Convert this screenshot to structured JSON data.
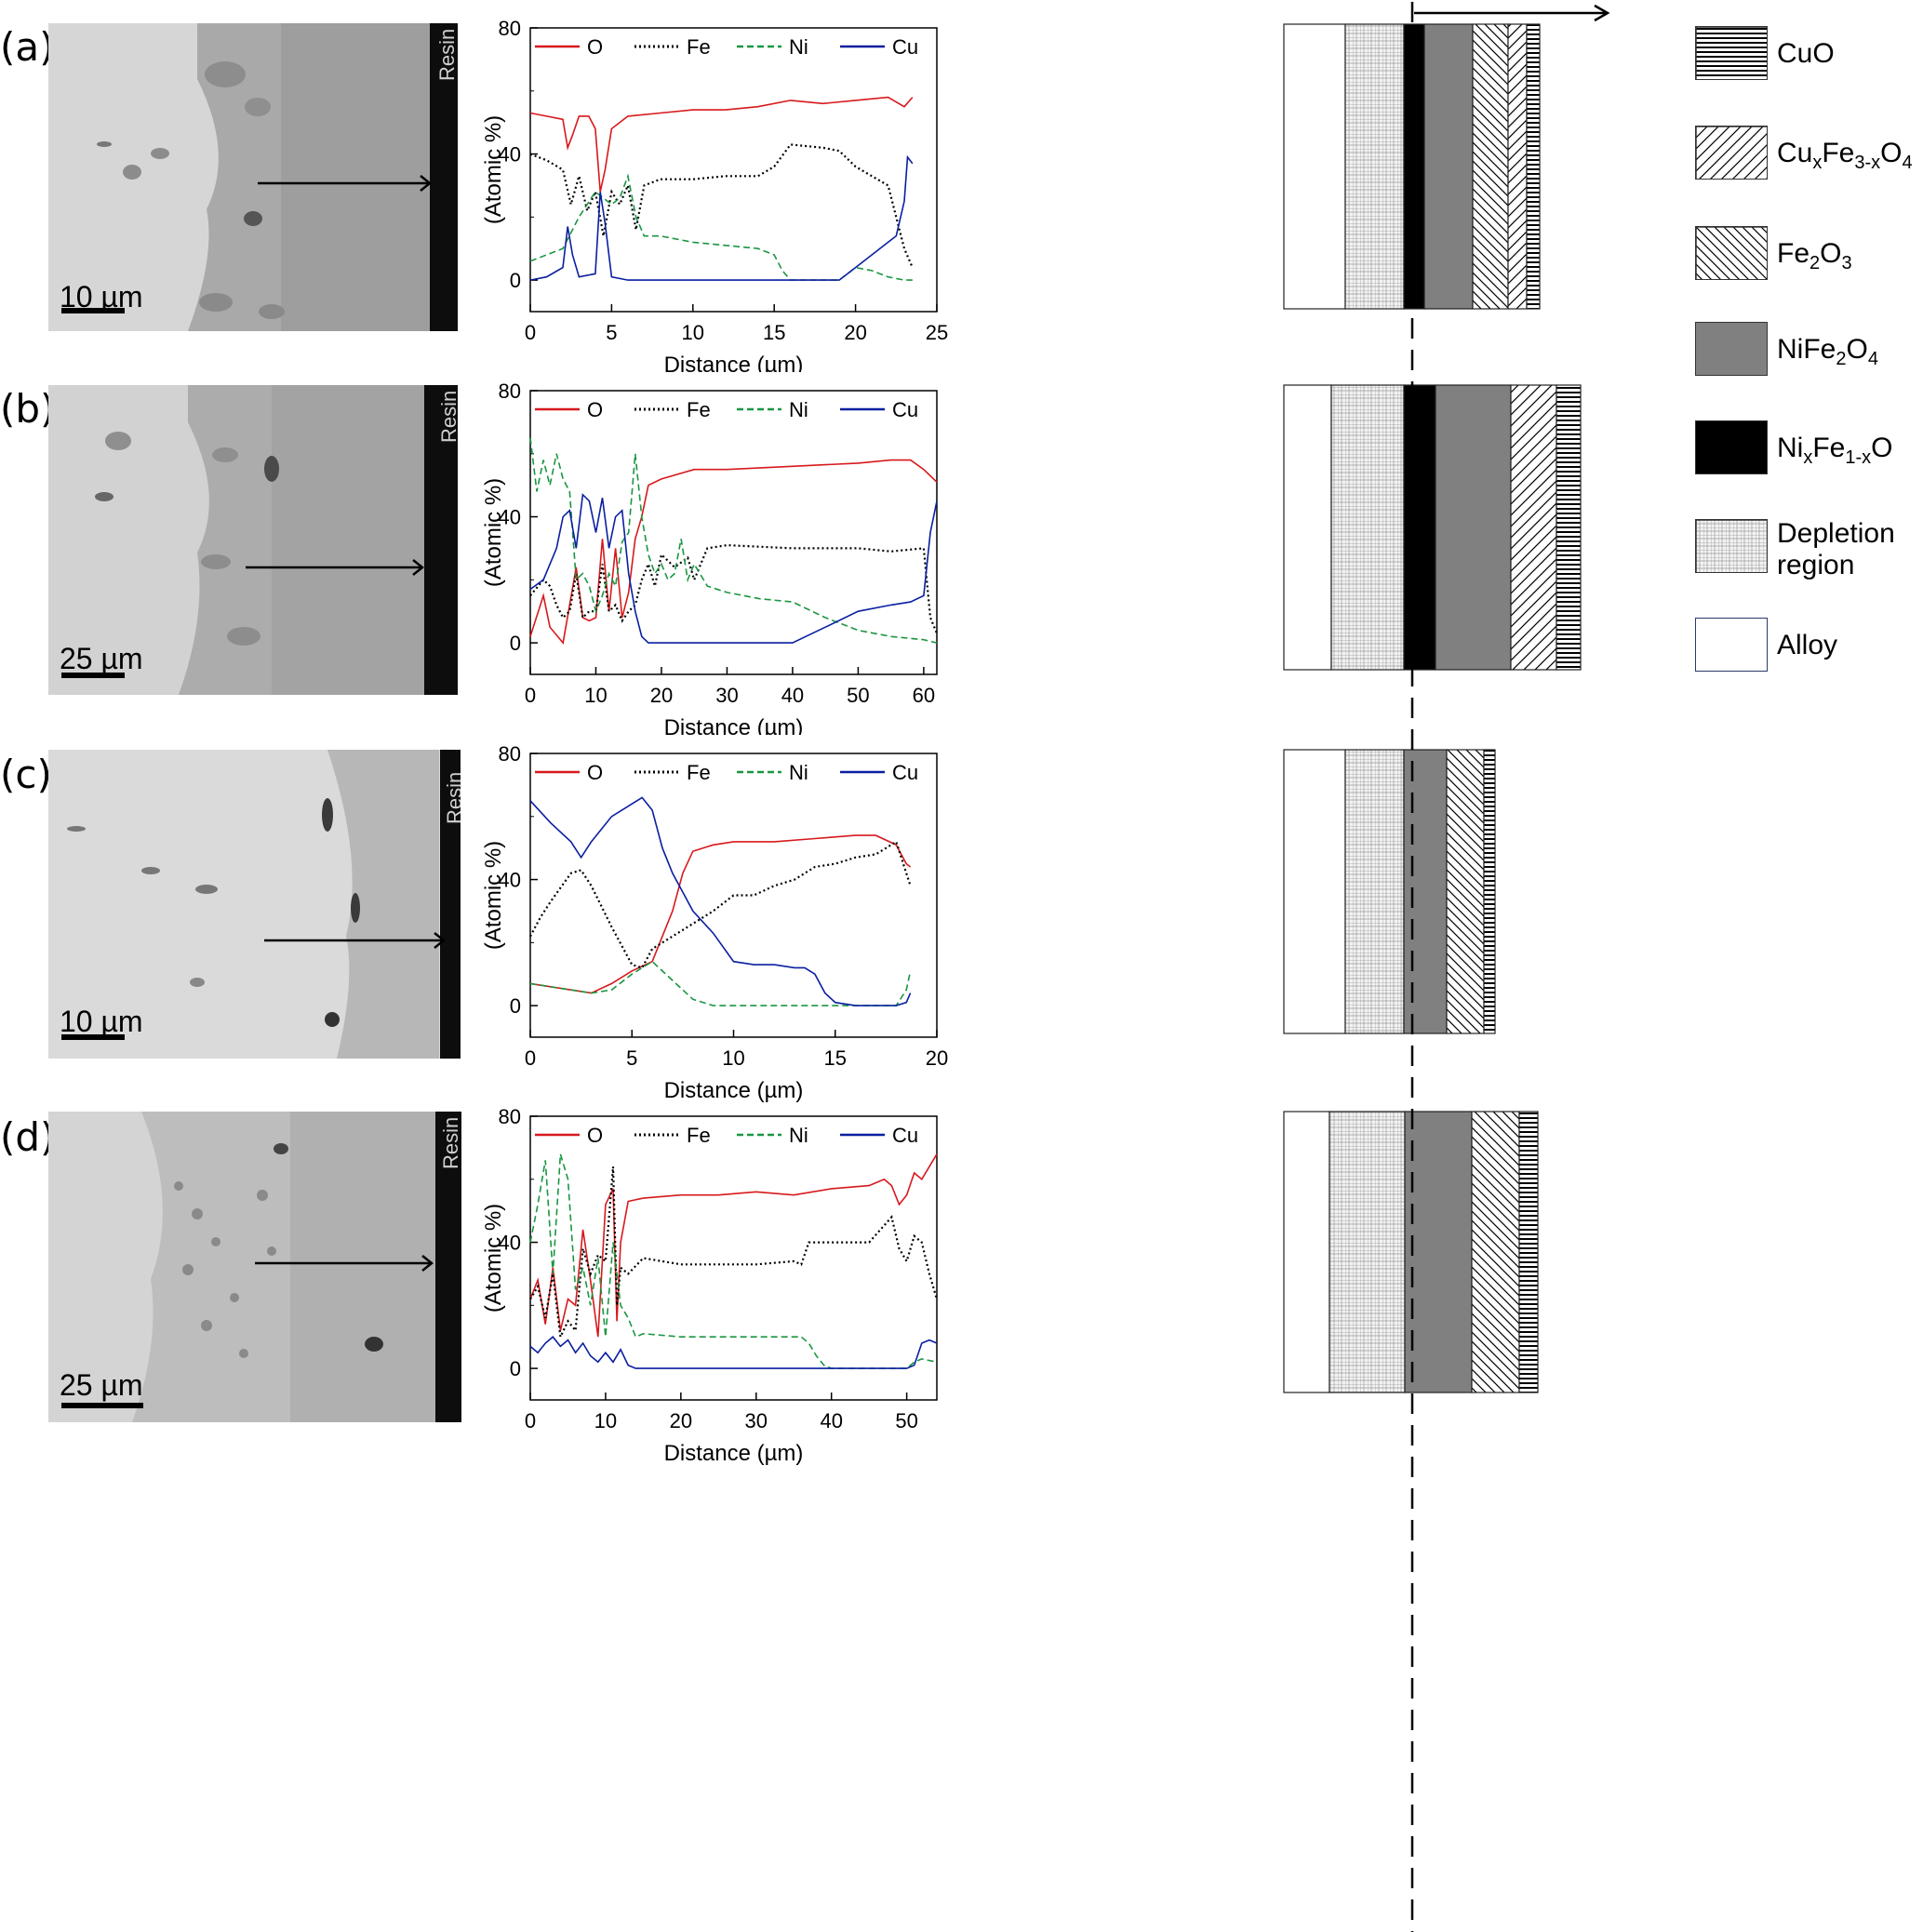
{
  "panels": [
    {
      "label": "(a)",
      "resin": "Resin",
      "scalebar": "10 µm",
      "legend": {
        "o": "O",
        "fe": "Fe",
        "ni": "Ni",
        "cu": "Cu"
      },
      "xlabel": "Distance (µm)",
      "ylabel": "(Atomic %)",
      "xticks": [
        "0",
        "5",
        "10",
        "15",
        "20",
        "25"
      ],
      "yticks": [
        "0",
        "40",
        "80"
      ]
    },
    {
      "label": "(b)",
      "resin": "Resin",
      "scalebar": "25 µm",
      "legend": {
        "o": "O",
        "fe": "Fe",
        "ni": "Ni",
        "cu": "Cu"
      },
      "xlabel": "Distance (µm)",
      "ylabel": "(Atomic %)",
      "xticks": [
        "0",
        "10",
        "20",
        "30",
        "40",
        "50",
        "60"
      ],
      "yticks": [
        "0",
        "40",
        "80"
      ]
    },
    {
      "label": "(c)",
      "resin": "Resin",
      "scalebar": "10 µm",
      "legend": {
        "o": "O",
        "fe": "Fe",
        "ni": "Ni",
        "cu": "Cu"
      },
      "xlabel": "Distance (µm)",
      "ylabel": "(Atomic %)",
      "xticks": [
        "0",
        "5",
        "10",
        "15",
        "20"
      ],
      "yticks": [
        "0",
        "40",
        "80"
      ]
    },
    {
      "label": "(d)",
      "resin": "Resin",
      "scalebar": "25 µm",
      "legend": {
        "o": "O",
        "fe": "Fe",
        "ni": "Ni",
        "cu": "Cu"
      },
      "xlabel": "Distance (µm)",
      "ylabel": "(Atomic %)",
      "xticks": [
        "0",
        "10",
        "20",
        "30",
        "40",
        "50"
      ],
      "yticks": [
        "0",
        "40",
        "80"
      ]
    }
  ],
  "legend": {
    "cuo": "CuO",
    "cufe_base": "Cu",
    "cufe_sub1": "x",
    "cufe_mid": "Fe",
    "cufe_sub2": "3-x",
    "cufe_end": "O",
    "cufe_sub3": "4",
    "fe2o3_a": "Fe",
    "fe2o3_s1": "2",
    "fe2o3_b": "O",
    "fe2o3_s2": "3",
    "nife_a": "NiFe",
    "nife_s1": "2",
    "nife_b": "O",
    "nife_s2": "4",
    "nio_a": "Ni",
    "nio_s1": "x",
    "nio_b": "Fe",
    "nio_s2": "1-x",
    "nio_c": "O",
    "depl1": "Depletion",
    "depl2": "region",
    "alloy": "Alloy"
  },
  "colors": {
    "o": "#d7191c",
    "fe": "#000000",
    "ni": "#1a9641",
    "cu": "#0a1fa0"
  },
  "chart_data": [
    {
      "type": "line",
      "panel": "(a)",
      "xlim": [
        0,
        25
      ],
      "ylim": [
        -10,
        80
      ],
      "series": [
        {
          "name": "O",
          "x": [
            0,
            1,
            2,
            2.3,
            2.6,
            3,
            3.6,
            4,
            4.3,
            4.6,
            5,
            6,
            8,
            10,
            12,
            14,
            16,
            18,
            20,
            22,
            23,
            23.5
          ],
          "y": [
            53,
            52,
            51,
            42,
            46,
            52,
            52,
            48,
            28,
            35,
            48,
            52,
            53,
            54,
            54,
            55,
            57,
            56,
            57,
            58,
            55,
            58
          ]
        },
        {
          "name": "Fe",
          "x": [
            0,
            1,
            2,
            2.5,
            3,
            3.5,
            4,
            4.5,
            5,
            5.5,
            6,
            6.5,
            7,
            8,
            10,
            12,
            14,
            15,
            16,
            18,
            19,
            20,
            21,
            22,
            23,
            23.5
          ],
          "y": [
            40,
            38,
            35,
            24,
            33,
            22,
            28,
            14,
            28,
            24,
            30,
            16,
            30,
            32,
            32,
            33,
            33,
            36,
            43,
            42,
            41,
            36,
            33,
            30,
            10,
            4
          ]
        },
        {
          "name": "Ni",
          "x": [
            0,
            1,
            2,
            3,
            4,
            5,
            5.5,
            6,
            6.5,
            7,
            8,
            10,
            12,
            14,
            15,
            15.5,
            16,
            17,
            19,
            20,
            21,
            22,
            23,
            23.5
          ],
          "y": [
            6,
            8,
            10,
            20,
            28,
            24,
            26,
            33,
            20,
            14,
            14,
            12,
            11,
            10,
            8,
            3,
            0,
            0,
            0,
            4,
            3,
            1,
            0,
            0
          ]
        },
        {
          "name": "Cu",
          "x": [
            0,
            1,
            2,
            2.3,
            2.6,
            3,
            4,
            4.3,
            4.6,
            5,
            6,
            8,
            10,
            12,
            14,
            16,
            18,
            19,
            20,
            21,
            22,
            22.5,
            23,
            23.2,
            23.5
          ],
          "y": [
            0,
            1,
            4,
            17,
            8,
            1,
            2,
            28,
            18,
            1,
            0,
            0,
            0,
            0,
            0,
            0,
            0,
            0,
            4,
            8,
            12,
            14,
            25,
            39,
            37
          ]
        }
      ]
    },
    {
      "type": "line",
      "panel": "(b)",
      "xlim": [
        0,
        62
      ],
      "ylim": [
        -10,
        80
      ],
      "series": [
        {
          "name": "O",
          "x": [
            0,
            2,
            3,
            5,
            6,
            7,
            8,
            9,
            10,
            11,
            12,
            13,
            14,
            15,
            16,
            17,
            18,
            20,
            25,
            30,
            40,
            50,
            55,
            58,
            60,
            62
          ],
          "y": [
            2,
            15,
            5,
            0,
            12,
            24,
            8,
            7,
            8,
            33,
            10,
            30,
            8,
            16,
            33,
            40,
            50,
            52,
            55,
            55,
            56,
            57,
            58,
            58,
            55,
            51
          ]
        },
        {
          "name": "Fe",
          "x": [
            0,
            2,
            3,
            4,
            5,
            6,
            7,
            8,
            9,
            10,
            11,
            12,
            13,
            14,
            15,
            16,
            17,
            18,
            19,
            20,
            22,
            24,
            25,
            27,
            30,
            40,
            50,
            55,
            60,
            61,
            62
          ],
          "y": [
            15,
            20,
            18,
            12,
            8,
            10,
            22,
            8,
            10,
            10,
            25,
            10,
            12,
            7,
            10,
            12,
            20,
            25,
            18,
            28,
            24,
            27,
            20,
            30,
            31,
            30,
            30,
            29,
            30,
            8,
            3
          ]
        },
        {
          "name": "Ni",
          "x": [
            0,
            1,
            2,
            3,
            4,
            5,
            6,
            7,
            8,
            9,
            10,
            11,
            12,
            13,
            14,
            15,
            16,
            17,
            18,
            19,
            20,
            21,
            22,
            23,
            24,
            25,
            27,
            30,
            35,
            40,
            45,
            50,
            55,
            60,
            62
          ],
          "y": [
            65,
            48,
            58,
            50,
            60,
            52,
            48,
            20,
            22,
            18,
            10,
            15,
            22,
            18,
            32,
            35,
            60,
            40,
            28,
            22,
            25,
            20,
            22,
            33,
            20,
            25,
            18,
            16,
            14,
            13,
            8,
            4,
            2,
            1,
            0
          ]
        },
        {
          "name": "Cu",
          "x": [
            0,
            2,
            4,
            5,
            6,
            7,
            8,
            9,
            10,
            11,
            12,
            13,
            14,
            15,
            16,
            17,
            18,
            20,
            25,
            30,
            35,
            40,
            45,
            50,
            55,
            58,
            60,
            61,
            62
          ],
          "y": [
            17,
            20,
            30,
            40,
            42,
            30,
            47,
            45,
            35,
            46,
            30,
            40,
            42,
            22,
            10,
            2,
            0,
            0,
            0,
            0,
            0,
            0,
            5,
            10,
            12,
            13,
            15,
            35,
            45
          ]
        }
      ]
    },
    {
      "type": "line",
      "panel": "(c)",
      "xlim": [
        0,
        20
      ],
      "ylim": [
        -10,
        80
      ],
      "series": [
        {
          "name": "O",
          "x": [
            0,
            1,
            2,
            3,
            4,
            5,
            6,
            6.5,
            7,
            7.5,
            8,
            9,
            10,
            12,
            14,
            16,
            17,
            18,
            18.5,
            18.7
          ],
          "y": [
            7,
            6,
            5,
            4,
            7,
            11,
            14,
            22,
            30,
            42,
            49,
            51,
            52,
            52,
            53,
            54,
            54,
            51,
            45,
            44
          ]
        },
        {
          "name": "Fe",
          "x": [
            0,
            0.5,
            1,
            2,
            2.5,
            3,
            4,
            5,
            5.5,
            6,
            7,
            8,
            9,
            10,
            11,
            12,
            13,
            14,
            15,
            16,
            17,
            17.5,
            18,
            18.5,
            18.7
          ],
          "y": [
            22,
            28,
            33,
            42,
            43,
            38,
            25,
            13,
            12,
            18,
            22,
            26,
            30,
            35,
            35,
            38,
            40,
            44,
            45,
            47,
            48,
            50,
            52,
            42,
            38
          ]
        },
        {
          "name": "Ni",
          "x": [
            0,
            1,
            2,
            3,
            4,
            5,
            6,
            7,
            8,
            9,
            10,
            12,
            14,
            16,
            17,
            18,
            18.5,
            18.7
          ],
          "y": [
            7,
            6,
            5,
            4,
            5,
            10,
            14,
            8,
            2,
            0,
            0,
            0,
            0,
            0,
            0,
            0,
            5,
            11
          ]
        },
        {
          "name": "Cu",
          "x": [
            0,
            1,
            2,
            2.5,
            3,
            4,
            5,
            5.5,
            6,
            6.5,
            7,
            7.5,
            8,
            9,
            10,
            11,
            12,
            13,
            13.5,
            14,
            14.5,
            15,
            16,
            17,
            18,
            18.5,
            18.7
          ],
          "y": [
            65,
            58,
            52,
            47,
            52,
            60,
            64,
            66,
            62,
            50,
            42,
            36,
            30,
            23,
            14,
            13,
            13,
            12,
            12,
            10,
            4,
            1,
            0,
            0,
            0,
            1,
            4
          ]
        }
      ]
    },
    {
      "type": "line",
      "panel": "(d)",
      "xlim": [
        0,
        54
      ],
      "ylim": [
        -10,
        80
      ],
      "series": [
        {
          "name": "O",
          "x": [
            0,
            1,
            2,
            3,
            4,
            5,
            6,
            7,
            8,
            9,
            10,
            11,
            11.5,
            12,
            13,
            15,
            20,
            25,
            30,
            35,
            40,
            45,
            47,
            48,
            49,
            50,
            51,
            52,
            54
          ],
          "y": [
            22,
            28,
            14,
            32,
            12,
            22,
            20,
            44,
            28,
            10,
            52,
            57,
            15,
            40,
            53,
            54,
            55,
            55,
            56,
            55,
            57,
            58,
            60,
            58,
            52,
            55,
            62,
            60,
            68
          ]
        },
        {
          "name": "Fe",
          "x": [
            0,
            1,
            2,
            3,
            4,
            5,
            6,
            7,
            8,
            9,
            10,
            11,
            11.5,
            12,
            13,
            15,
            20,
            30,
            35,
            36,
            37,
            40,
            45,
            48,
            49,
            50,
            51,
            52,
            53,
            54
          ],
          "y": [
            22,
            26,
            16,
            30,
            10,
            15,
            12,
            38,
            30,
            36,
            34,
            64,
            20,
            32,
            30,
            35,
            33,
            33,
            34,
            33,
            40,
            40,
            40,
            48,
            38,
            34,
            42,
            40,
            30,
            22
          ]
        },
        {
          "name": "Ni",
          "x": [
            0,
            1,
            2,
            3,
            4,
            5,
            6,
            7,
            8,
            9,
            10,
            11,
            12,
            13,
            14,
            15,
            20,
            30,
            36,
            37,
            38,
            39,
            40,
            45,
            50,
            51,
            52,
            54
          ],
          "y": [
            40,
            52,
            66,
            30,
            68,
            60,
            25,
            32,
            20,
            35,
            10,
            40,
            20,
            16,
            10,
            11,
            10,
            10,
            10,
            8,
            4,
            1,
            0,
            0,
            0,
            2,
            3,
            2
          ]
        },
        {
          "name": "Cu",
          "x": [
            0,
            1,
            2,
            3,
            4,
            5,
            6,
            7,
            8,
            9,
            10,
            11,
            12,
            13,
            14,
            15,
            20,
            30,
            40,
            45,
            50,
            51,
            52,
            53,
            54
          ],
          "y": [
            7,
            5,
            8,
            10,
            7,
            9,
            5,
            8,
            4,
            2,
            5,
            2,
            6,
            1,
            0,
            0,
            0,
            0,
            0,
            0,
            0,
            1,
            8,
            9,
            8
          ]
        }
      ]
    }
  ]
}
